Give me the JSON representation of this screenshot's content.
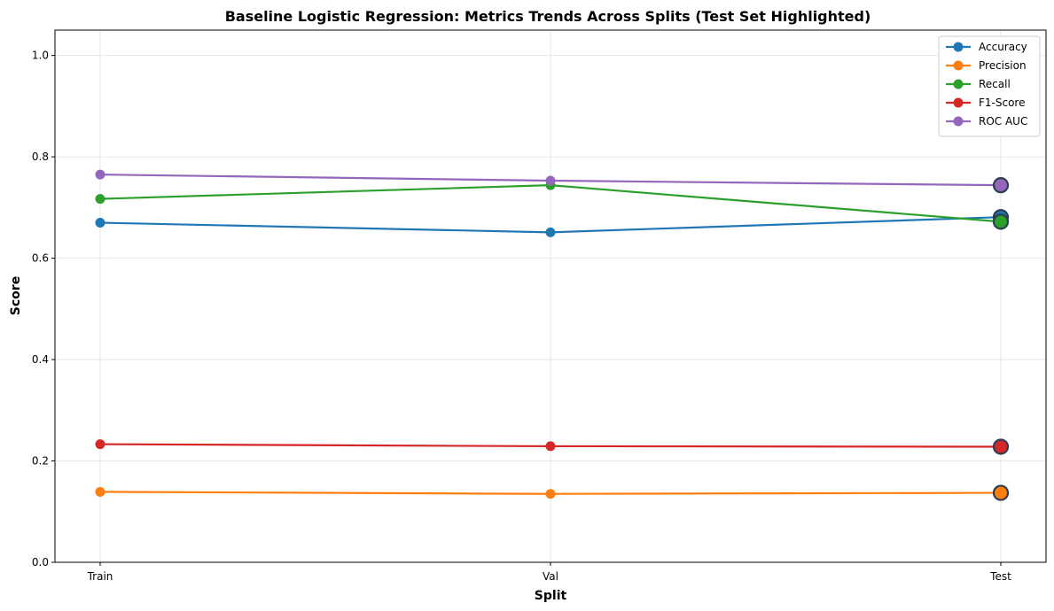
{
  "chart_data": {
    "type": "line",
    "title": "Baseline Logistic Regression: Metrics Trends Across Splits (Test Set Highlighted)",
    "xlabel": "Split",
    "ylabel": "Score",
    "categories": [
      "Train",
      "Val",
      "Test"
    ],
    "highlight_category": "Test",
    "ylim": [
      0,
      1.05
    ],
    "yticks": [
      0.0,
      0.2,
      0.4,
      0.6,
      0.8,
      1.0
    ],
    "ytick_labels": [
      "0.0",
      "0.2",
      "0.4",
      "0.6",
      "0.8",
      "1.0"
    ],
    "grid": true,
    "legend_position": "top-right",
    "series": [
      {
        "name": "Accuracy",
        "color": "#1f77b4",
        "values": [
          0.67,
          0.651,
          0.681
        ]
      },
      {
        "name": "Precision",
        "color": "#ff7f0e",
        "values": [
          0.139,
          0.135,
          0.137
        ]
      },
      {
        "name": "Recall",
        "color": "#2ca02c",
        "values": [
          0.717,
          0.744,
          0.672
        ]
      },
      {
        "name": "F1-Score",
        "color": "#d62728",
        "values": [
          0.233,
          0.229,
          0.228
        ]
      },
      {
        "name": "ROC AUC",
        "color": "#9467bd",
        "values": [
          0.765,
          0.753,
          0.744
        ]
      }
    ]
  }
}
